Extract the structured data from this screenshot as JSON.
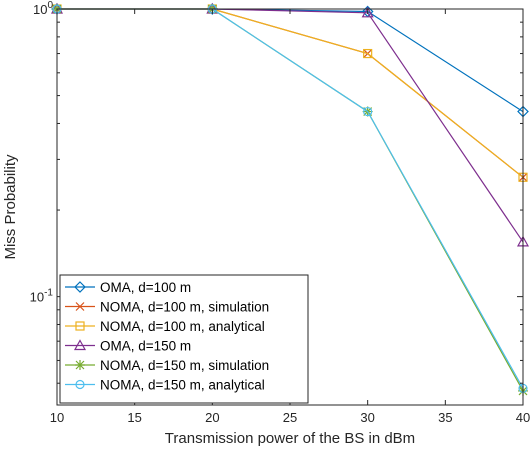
{
  "chart_data": {
    "type": "line",
    "xlabel": "Transmission power of the BS in dBm",
    "ylabel": "Miss Probability",
    "x": [
      10,
      20,
      30,
      40
    ],
    "xlim": [
      10,
      40
    ],
    "xticks": [
      10,
      15,
      20,
      25,
      30,
      35,
      40
    ],
    "xtick_labels": [
      "10",
      "15",
      "20",
      "25",
      "30",
      "35",
      "40"
    ],
    "ylim": [
      0.042,
      1.0
    ],
    "yscale": "log",
    "yticks": [
      1.0,
      0.1
    ],
    "ytick_labels": [
      {
        "base": "10",
        "exp": "0"
      },
      {
        "base": "10",
        "exp": "-1"
      }
    ],
    "grid": false,
    "legend_position": "bottom-left",
    "series": [
      {
        "name": "OMA, d=100 m",
        "color": "#0072BD",
        "marker": "diamond",
        "values": [
          1.0,
          1.0,
          0.98,
          0.44
        ]
      },
      {
        "name": "NOMA, d=100 m, simulation",
        "color": "#D95319",
        "marker": "x",
        "values": [
          1.0,
          1.0,
          0.7,
          0.26
        ]
      },
      {
        "name": "NOMA, d=100 m, analytical",
        "color": "#EDB120",
        "marker": "square",
        "values": [
          1.0,
          1.0,
          0.7,
          0.26
        ]
      },
      {
        "name": "OMA, d=150 m",
        "color": "#7E2F8E",
        "marker": "triangle",
        "values": [
          1.0,
          1.0,
          0.97,
          0.155
        ]
      },
      {
        "name": "NOMA, d=150 m, simulation",
        "color": "#77AC30",
        "marker": "star",
        "values": [
          1.0,
          1.0,
          0.44,
          0.047
        ]
      },
      {
        "name": "NOMA, d=150 m, analytical",
        "color": "#4DBEEE",
        "marker": "circle",
        "values": [
          1.0,
          1.0,
          0.44,
          0.048
        ]
      }
    ]
  }
}
